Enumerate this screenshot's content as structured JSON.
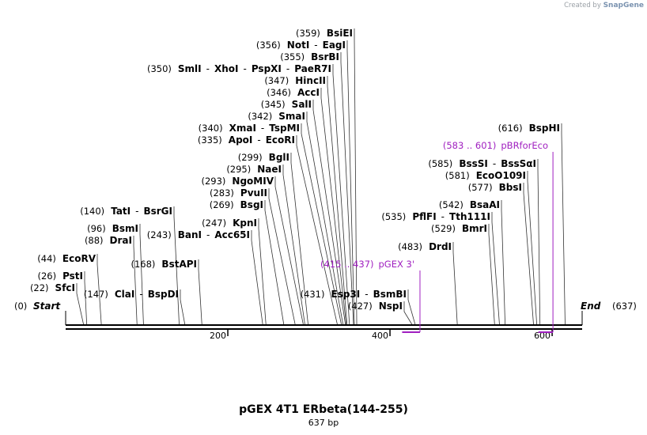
{
  "credit": {
    "prefix": "Created by",
    "brand": "SnapGene"
  },
  "title": "pGEX 4T1 ERbeta(144-255)",
  "subtitle": "637 bp",
  "map": {
    "length": 637,
    "start_label": "Start",
    "start_pos": "(0)",
    "end_label": "End",
    "end_pos": "(637)",
    "ticks": [
      "200",
      "400",
      "600"
    ],
    "tick_values": [
      200,
      400,
      600
    ]
  },
  "enzymes": [
    {
      "pos": "(22)",
      "names": [
        "SfcI"
      ],
      "site": 22
    },
    {
      "pos": "(26)",
      "names": [
        "PstI"
      ],
      "site": 26
    },
    {
      "pos": "(44)",
      "names": [
        "EcoRV"
      ],
      "site": 44
    },
    {
      "pos": "(88)",
      "names": [
        "DraI"
      ],
      "site": 88
    },
    {
      "pos": "(96)",
      "names": [
        "BsmI"
      ],
      "site": 96
    },
    {
      "pos": "(140)",
      "names": [
        "TatI",
        "BsrGI"
      ],
      "site": 140
    },
    {
      "pos": "(147)",
      "names": [
        "ClaI",
        "BspDI"
      ],
      "site": 147
    },
    {
      "pos": "(168)",
      "names": [
        "BstAPI"
      ],
      "site": 168
    },
    {
      "pos": "(243)",
      "names": [
        "BanI",
        "Acc65I"
      ],
      "site": 243
    },
    {
      "pos": "(247)",
      "names": [
        "KpnI"
      ],
      "site": 247
    },
    {
      "pos": "(269)",
      "names": [
        "BsgI"
      ],
      "site": 269
    },
    {
      "pos": "(283)",
      "names": [
        "PvuII"
      ],
      "site": 283
    },
    {
      "pos": "(293)",
      "names": [
        "NgoMIV"
      ],
      "site": 293
    },
    {
      "pos": "(295)",
      "names": [
        "NaeI"
      ],
      "site": 295
    },
    {
      "pos": "(299)",
      "names": [
        "BglI"
      ],
      "site": 299
    },
    {
      "pos": "(335)",
      "names": [
        "ApoI",
        "EcoRI"
      ],
      "site": 335
    },
    {
      "pos": "(340)",
      "names": [
        "XmaI",
        "TspMI"
      ],
      "site": 340
    },
    {
      "pos": "(342)",
      "names": [
        "SmaI"
      ],
      "site": 342
    },
    {
      "pos": "(345)",
      "names": [
        "SalI"
      ],
      "site": 345
    },
    {
      "pos": "(346)",
      "names": [
        "AccI"
      ],
      "site": 346
    },
    {
      "pos": "(347)",
      "names": [
        "HincII"
      ],
      "site": 347
    },
    {
      "pos": "(350)",
      "names": [
        "SmlI",
        "XhoI",
        "PspXI",
        "PaeR7I"
      ],
      "site": 350
    },
    {
      "pos": "(355)",
      "names": [
        "BsrBI"
      ],
      "site": 355
    },
    {
      "pos": "(356)",
      "names": [
        "NotI",
        "EagI"
      ],
      "site": 356
    },
    {
      "pos": "(359)",
      "names": [
        "BsiEI"
      ],
      "site": 359
    },
    {
      "pos": "(427)",
      "names": [
        "NspI"
      ],
      "site": 427
    },
    {
      "pos": "(431)",
      "names": [
        "Esp3I",
        "BsmBI"
      ],
      "site": 431
    },
    {
      "pos": "(483)",
      "names": [
        "DrdI"
      ],
      "site": 483
    },
    {
      "pos": "(529)",
      "names": [
        "BmrI"
      ],
      "site": 529
    },
    {
      "pos": "(535)",
      "names": [
        "PflFI",
        "Tth111I"
      ],
      "site": 535
    },
    {
      "pos": "(542)",
      "names": [
        "BsaAI"
      ],
      "site": 542
    },
    {
      "pos": "(577)",
      "names": [
        "BbsI"
      ],
      "site": 577
    },
    {
      "pos": "(581)",
      "names": [
        "EcoO109I"
      ],
      "site": 581
    },
    {
      "pos": "(585)",
      "names": [
        "BssSI",
        "BssSαI"
      ],
      "site": 585
    },
    {
      "pos": "(616)",
      "names": [
        "BspHI"
      ],
      "site": 616
    }
  ],
  "primers": [
    {
      "range": "(415 .. 437)",
      "name": "pGEX 3'",
      "from": 415,
      "to": 437,
      "color": "#a020c0"
    },
    {
      "range": "(583 .. 601)",
      "name": "pBRforEco",
      "from": 583,
      "to": 601,
      "color": "#a020c0"
    }
  ]
}
